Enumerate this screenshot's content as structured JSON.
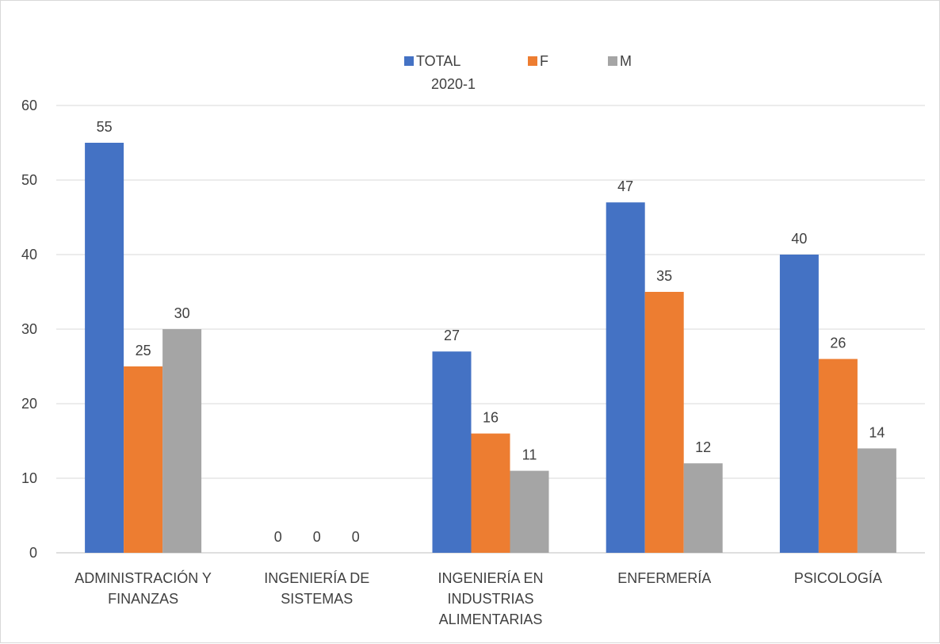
{
  "chart_data": {
    "type": "bar",
    "title": "",
    "xlabel": "",
    "ylabel": "",
    "ylim": [
      0,
      60
    ],
    "yticks": [
      0,
      10,
      20,
      30,
      40,
      50,
      60
    ],
    "grid": true,
    "legend_position": "top",
    "categories": [
      [
        "ADMINISTRACIÓN Y",
        "FINANZAS"
      ],
      [
        "INGENIERÍA DE",
        "SISTEMAS"
      ],
      [
        "INGENIERÍA EN",
        "INDUSTRIAS",
        "ALIMENTARIAS"
      ],
      [
        "ENFERMERÍA"
      ],
      [
        "PSICOLOGÍA"
      ]
    ],
    "series": [
      {
        "name": [
          "TOTAL",
          "2020-1"
        ],
        "color": "#4472c4",
        "values": [
          55,
          0,
          27,
          47,
          40
        ]
      },
      {
        "name": [
          "F"
        ],
        "color": "#ed7d31",
        "values": [
          25,
          0,
          16,
          35,
          26
        ]
      },
      {
        "name": [
          "M"
        ],
        "color": "#a5a5a5",
        "values": [
          30,
          0,
          11,
          12,
          14
        ]
      }
    ]
  }
}
